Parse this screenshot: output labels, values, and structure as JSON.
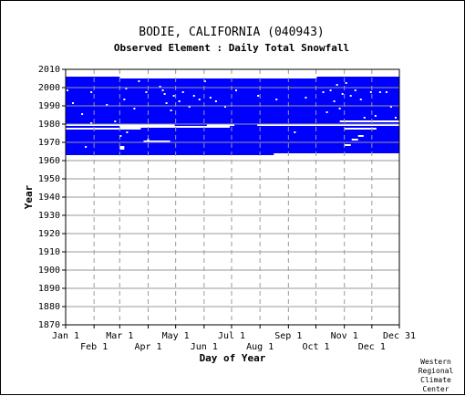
{
  "chart_data": {
    "type": "heatmap",
    "title": "BODIE, CALIFORNIA   (040943)",
    "subtitle": "Observed Element : Daily Total Snowfall",
    "xlabel": "Day of Year",
    "ylabel": "Year",
    "ylim": [
      1870,
      2010
    ],
    "y_ticks": [
      1870,
      1880,
      1890,
      1900,
      1910,
      1920,
      1930,
      1940,
      1950,
      1960,
      1970,
      1980,
      1990,
      2000,
      2010
    ],
    "x_ticks_upper": [
      "Jan 1",
      "Mar 1",
      "May 1",
      "Jul 1",
      "Sep 1",
      "Nov 1",
      "Dec 31"
    ],
    "x_ticks_lower": [
      "Feb 1",
      "Apr 1",
      "Jun 1",
      "Aug 1",
      "Oct 1",
      "Dec 1"
    ],
    "grid": true,
    "data_color": "#0000ff",
    "missing_color": "#ffffff",
    "series": [
      {
        "day_start": 1,
        "day_end": 365,
        "year_start": 1963,
        "year_end": 2005
      },
      {
        "day_start": 275,
        "day_end": 365,
        "year_start": 2005,
        "year_end": 2006
      },
      {
        "day_start": 1,
        "day_end": 60,
        "year_start": 2005,
        "year_end": 2006
      }
    ],
    "missing_periods": [
      {
        "day_start": 1,
        "day_end": 83,
        "year_start": 1977,
        "year_end": 1978
      },
      {
        "day_start": 1,
        "day_end": 120,
        "year_start": 1979,
        "year_end": 1980
      },
      {
        "day_start": 60,
        "day_end": 180,
        "year_start": 1978,
        "year_end": 1979
      },
      {
        "day_start": 60,
        "day_end": 65,
        "year_start": 1966,
        "year_end": 1968
      },
      {
        "day_start": 86,
        "day_end": 115,
        "year_start": 1970,
        "year_end": 1971
      },
      {
        "day_start": 155,
        "day_end": 185,
        "year_start": 1979,
        "year_end": 1980
      },
      {
        "day_start": 210,
        "day_end": 365,
        "year_start": 1979,
        "year_end": 1980
      },
      {
        "day_start": 300,
        "day_end": 365,
        "year_start": 1981,
        "year_end": 1982
      },
      {
        "day_start": 305,
        "day_end": 340,
        "year_start": 1977,
        "year_end": 1978
      },
      {
        "day_start": 305,
        "day_end": 312,
        "year_start": 1968,
        "year_end": 1969
      },
      {
        "day_start": 313,
        "day_end": 320,
        "year_start": 1971,
        "year_end": 1972
      },
      {
        "day_start": 320,
        "day_end": 326,
        "year_start": 1973,
        "year_end": 1974
      },
      {
        "day_start": 228,
        "day_end": 365,
        "year_start": 1963,
        "year_end": 1964
      }
    ],
    "missing_specks": [
      [
        2,
        1999
      ],
      [
        8,
        1992
      ],
      [
        28,
        1998
      ],
      [
        18,
        1986
      ],
      [
        22,
        1968
      ],
      [
        45,
        1991
      ],
      [
        64,
        1994
      ],
      [
        66,
        2000
      ],
      [
        75,
        1989
      ],
      [
        80,
        2004
      ],
      [
        88,
        1998
      ],
      [
        90,
        1972
      ],
      [
        103,
        2001
      ],
      [
        106,
        1999
      ],
      [
        108,
        1997
      ],
      [
        110,
        1992
      ],
      [
        115,
        1988
      ],
      [
        118,
        1996
      ],
      [
        124,
        1993
      ],
      [
        128,
        1998
      ],
      [
        135,
        1990
      ],
      [
        140,
        1996
      ],
      [
        146,
        1994
      ],
      [
        152,
        2004
      ],
      [
        158,
        1995
      ],
      [
        164,
        1993
      ],
      [
        174,
        1990
      ],
      [
        186,
        1999
      ],
      [
        210,
        1996
      ],
      [
        230,
        1994
      ],
      [
        262,
        1995
      ],
      [
        281,
        1998
      ],
      [
        285,
        1987
      ],
      [
        289,
        1999
      ],
      [
        293,
        1993
      ],
      [
        296,
        2002
      ],
      [
        299,
        1989
      ],
      [
        302,
        1997
      ],
      [
        306,
        2003
      ],
      [
        311,
        1996
      ],
      [
        316,
        1999
      ],
      [
        322,
        1994
      ],
      [
        326,
        1984
      ],
      [
        333,
        1998
      ],
      [
        338,
        1985
      ],
      [
        343,
        1998
      ],
      [
        350,
        1998
      ],
      [
        355,
        1990
      ],
      [
        360,
        1984
      ],
      [
        28,
        1981
      ],
      [
        54,
        1982
      ],
      [
        60,
        1974
      ],
      [
        67,
        1976
      ],
      [
        250,
        1976
      ],
      [
        310,
        1978
      ],
      [
        298,
        1980
      ]
    ]
  },
  "footer": {
    "credit_lines": [
      "Western",
      "Regional",
      "Climate",
      "Center"
    ]
  }
}
